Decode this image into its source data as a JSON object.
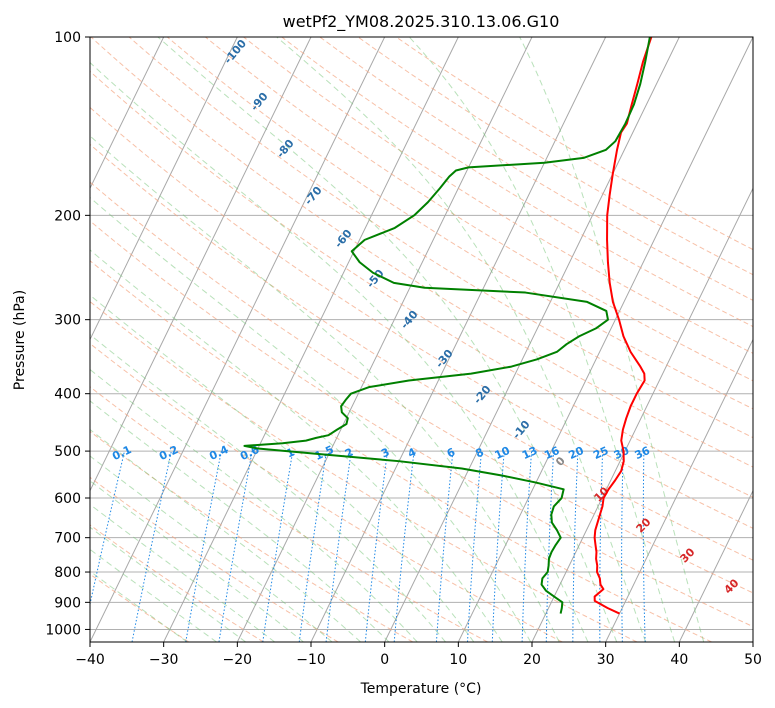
{
  "chart_data": {
    "type": "line",
    "title": "wetPf2_YM08.2025.310.13.06.G10",
    "xlabel": "Temperature (°C)",
    "ylabel": "Pressure (hPa)",
    "xlim": [
      -40,
      50
    ],
    "ylim": [
      1050,
      100
    ],
    "y_scale": "log",
    "grid": true,
    "x_ticks": [
      "−40",
      "−30",
      "−20",
      "−10",
      "0",
      "10",
      "20",
      "30",
      "40",
      "50"
    ],
    "y_ticks": [
      {
        "p": 100,
        "label": "100"
      },
      {
        "p": 200,
        "label": "200"
      },
      {
        "p": 300,
        "label": "300"
      },
      {
        "p": 400,
        "label": "400"
      },
      {
        "p": 500,
        "label": "500"
      },
      {
        "p": 600,
        "label": "600"
      },
      {
        "p": 700,
        "label": "700"
      },
      {
        "p": 800,
        "label": "800"
      },
      {
        "p": 900,
        "label": "900"
      },
      {
        "p": 1000,
        "label": "1000"
      }
    ],
    "dry_adiabat_labels": [
      "-100",
      "-90",
      "-80",
      "-70",
      "-60",
      "-50",
      "-40",
      "-30",
      "-20",
      "-10"
    ],
    "mixing_ratio_labels": [
      "0.1",
      "0.2",
      "0.4",
      "0.6",
      "1",
      "1.5",
      "2",
      "3",
      "4",
      "6",
      "8",
      "10",
      "13",
      "16",
      "20",
      "25",
      "30",
      "36"
    ],
    "moist_adiabat_labels": [
      "0",
      "10",
      "20",
      "30",
      "40"
    ],
    "series": [
      {
        "color": "#ff0000",
        "kind": "temperature",
        "p": [
          940,
          920,
          895,
          880,
          855,
          840,
          820,
          800,
          780,
          760,
          740,
          720,
          700,
          680,
          660,
          640,
          620,
          600,
          580,
          560,
          540,
          520,
          500,
          480,
          460,
          440,
          420,
          400,
          380,
          370,
          360,
          340,
          320,
          300,
          280,
          260,
          240,
          220,
          200,
          185,
          170,
          155,
          145,
          140,
          130,
          120,
          110,
          100
        ],
        "t": [
          30,
          28,
          25.8,
          25.5,
          26.2,
          25.5,
          25,
          24.2,
          23.8,
          23.2,
          22.8,
          22.2,
          21.6,
          21.2,
          21,
          20.8,
          20.6,
          20.2,
          20.3,
          20.6,
          20.8,
          20.5,
          19.8,
          18.8,
          18.3,
          18,
          17.8,
          17.8,
          18,
          17.5,
          16.5,
          14.2,
          12.2,
          10.5,
          8.5,
          6.8,
          5.2,
          3.6,
          2,
          1,
          0,
          -1,
          -1.6,
          -1.4,
          -2,
          -2.6,
          -3.3,
          -3.8
        ]
      },
      {
        "color": "#008000",
        "kind": "dewpoint",
        "p": [
          940,
          920,
          900,
          880,
          860,
          840,
          820,
          800,
          780,
          760,
          740,
          720,
          700,
          680,
          660,
          640,
          620,
          600,
          580,
          565,
          550,
          535,
          520,
          505,
          495,
          490,
          485,
          480,
          475,
          470,
          460,
          450,
          440,
          430,
          420,
          410,
          400,
          390,
          380,
          370,
          360,
          350,
          340,
          330,
          320,
          310,
          300,
          290,
          280,
          270,
          265,
          260,
          250,
          240,
          230,
          220,
          210,
          200,
          190,
          180,
          172,
          168,
          166,
          163,
          160,
          155,
          150,
          140,
          130,
          120,
          110,
          100
        ],
        "t": [
          22,
          21.8,
          21.5,
          20,
          18.5,
          17.5,
          17.2,
          17.5,
          17.2,
          16.8,
          16.7,
          16.8,
          17,
          16,
          14.8,
          14.2,
          14,
          14.5,
          14.2,
          10,
          5,
          -1,
          -10,
          -22,
          -30,
          -32,
          -27,
          -24,
          -22.8,
          -21.3,
          -20.5,
          -19.6,
          -19.8,
          -21,
          -21.5,
          -21.3,
          -21,
          -19,
          -14,
          -6,
          -1,
          2,
          4.2,
          5,
          6.2,
          8,
          9,
          8.2,
          5,
          -4,
          -18,
          -22.5,
          -26,
          -28.5,
          -30.3,
          -29.3,
          -26,
          -24.2,
          -23.2,
          -22.5,
          -22,
          -21.5,
          -20,
          -10,
          -5,
          -2.5,
          -1.8,
          -1.6,
          -1.7,
          -2.2,
          -3,
          -4
        ]
      }
    ]
  }
}
